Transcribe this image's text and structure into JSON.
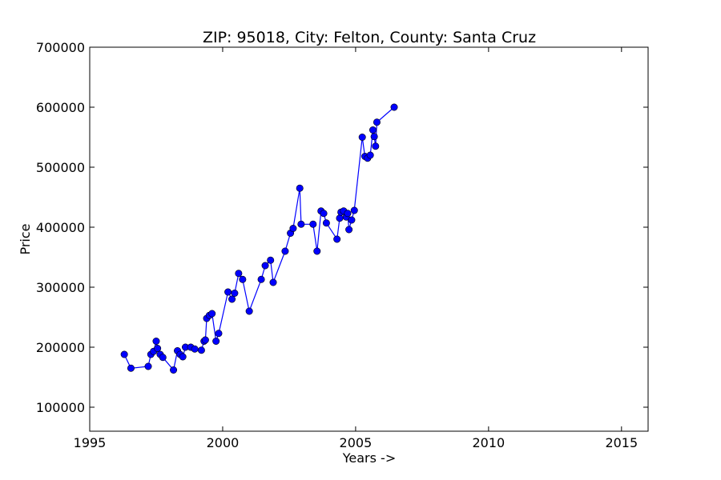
{
  "chart_data": {
    "type": "line",
    "title": "ZIP: 95018, City: Felton, County: Santa Cruz",
    "xlabel": "Years ->",
    "ylabel": "Price",
    "xlim": [
      1995,
      2016
    ],
    "ylim": [
      60000,
      700000
    ],
    "xticks": [
      1995,
      2000,
      2005,
      2010,
      2015
    ],
    "yticks": [
      100000,
      200000,
      300000,
      400000,
      500000,
      600000,
      700000
    ],
    "grid": false,
    "legend": "none",
    "colors": {
      "series": "#0000ff",
      "axes": "#000000",
      "background": "#ffffff"
    },
    "series": [
      {
        "x": [
          1996.3,
          1996.55,
          1997.2,
          1997.3,
          1997.4,
          1997.5,
          1997.55,
          1997.65,
          1997.75,
          1998.15,
          1998.3,
          1998.4,
          1998.5,
          1998.6,
          1998.8,
          1998.95,
          1999.2,
          1999.3,
          1999.35,
          1999.4,
          1999.5,
          1999.6,
          1999.75,
          1999.85,
          2000.2,
          2000.35,
          2000.45,
          2000.6,
          2000.75,
          2001.0,
          2001.45,
          2001.6,
          2001.8,
          2001.9,
          2002.35,
          2002.55,
          2002.65,
          2002.9,
          2002.95,
          2003.4,
          2003.55,
          2003.7,
          2003.8,
          2003.9,
          2004.3,
          2004.4,
          2004.45,
          2004.55,
          2004.65,
          2004.7,
          2004.75,
          2004.85,
          2004.95,
          2005.25,
          2005.35,
          2005.45,
          2005.55,
          2005.65,
          2005.7,
          2005.75,
          2005.8,
          2006.45
        ],
        "y": [
          188000,
          165000,
          168000,
          188000,
          193000,
          210000,
          198000,
          188000,
          183000,
          162000,
          194000,
          188000,
          184000,
          200000,
          200000,
          197000,
          195000,
          210000,
          212000,
          248000,
          253000,
          256000,
          210000,
          223000,
          292000,
          280000,
          290000,
          323000,
          313000,
          260000,
          313000,
          336000,
          345000,
          308000,
          360000,
          390000,
          398000,
          465000,
          405000,
          405000,
          360000,
          427000,
          423000,
          407000,
          380000,
          415000,
          425000,
          427000,
          417000,
          423000,
          396000,
          412000,
          428000,
          550000,
          518000,
          515000,
          520000,
          562000,
          551000,
          535000,
          575000,
          600000
        ]
      }
    ]
  }
}
